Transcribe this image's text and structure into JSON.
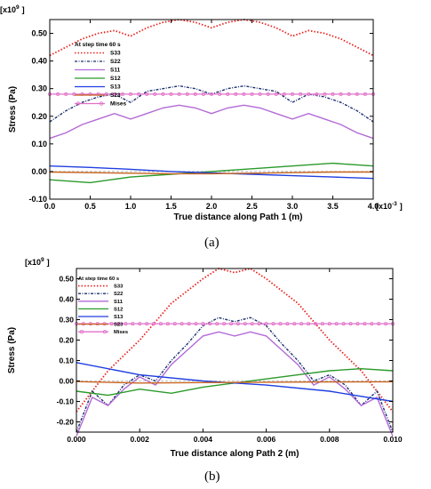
{
  "chart_data": [
    {
      "type": "line",
      "panel_label": "(a)",
      "multiplier_label": "[x10",
      "multiplier_exp": "9",
      "multiplier_close": "]",
      "x_multiplier_label": "[x10",
      "x_multiplier_exp": "-3",
      "x_multiplier_close": "]",
      "xlabel": "True distance along Path 1 (m)",
      "ylabel": "Stress (Pa)",
      "xlim": [
        0,
        4.0
      ],
      "ylim": [
        -0.1,
        0.55
      ],
      "xticks": [
        "0.0",
        "0.5",
        "1.0",
        "1.5",
        "2.0",
        "2.5",
        "3.0",
        "3.5",
        "4.0"
      ],
      "yticks": [
        "-0.10",
        "0.00",
        "0.10",
        "0.20",
        "0.30",
        "0.40",
        "0.50"
      ],
      "legend_title": "At step time 60 s",
      "legend_position": "top-left",
      "series": [
        {
          "name": "S33",
          "color": "#e8231e",
          "style": "dotted",
          "x": [
            0,
            0.2,
            0.4,
            0.6,
            0.8,
            1.0,
            1.2,
            1.4,
            1.6,
            1.8,
            2.0,
            2.2,
            2.4,
            2.6,
            2.8,
            3.0,
            3.2,
            3.4,
            3.6,
            3.8,
            4.0
          ],
          "y": [
            0.42,
            0.45,
            0.48,
            0.5,
            0.51,
            0.49,
            0.52,
            0.54,
            0.55,
            0.54,
            0.52,
            0.54,
            0.55,
            0.54,
            0.52,
            0.49,
            0.51,
            0.5,
            0.48,
            0.45,
            0.42
          ]
        },
        {
          "name": "S22",
          "color": "#1a2f6e",
          "style": "dashdot",
          "x": [
            0,
            0.2,
            0.4,
            0.6,
            0.8,
            1.0,
            1.2,
            1.4,
            1.6,
            1.8,
            2.0,
            2.2,
            2.4,
            2.6,
            2.8,
            3.0,
            3.2,
            3.4,
            3.6,
            3.8,
            4.0
          ],
          "y": [
            0.18,
            0.22,
            0.25,
            0.27,
            0.28,
            0.25,
            0.29,
            0.3,
            0.31,
            0.3,
            0.28,
            0.3,
            0.31,
            0.3,
            0.29,
            0.25,
            0.28,
            0.27,
            0.25,
            0.22,
            0.18
          ]
        },
        {
          "name": "S11",
          "color": "#b36ad6",
          "style": "solid",
          "x": [
            0,
            0.2,
            0.4,
            0.6,
            0.8,
            1.0,
            1.2,
            1.4,
            1.6,
            1.8,
            2.0,
            2.2,
            2.4,
            2.6,
            2.8,
            3.0,
            3.2,
            3.4,
            3.6,
            3.8,
            4.0
          ],
          "y": [
            0.12,
            0.14,
            0.17,
            0.19,
            0.21,
            0.19,
            0.21,
            0.23,
            0.24,
            0.23,
            0.21,
            0.23,
            0.24,
            0.23,
            0.21,
            0.19,
            0.21,
            0.19,
            0.17,
            0.14,
            0.12
          ]
        },
        {
          "name": "S12",
          "color": "#2a9a2a",
          "style": "solid",
          "x": [
            0,
            0.5,
            1.0,
            1.5,
            2.0,
            2.5,
            3.0,
            3.5,
            4.0
          ],
          "y": [
            -0.03,
            -0.04,
            -0.02,
            -0.01,
            0.0,
            0.01,
            0.02,
            0.03,
            0.02
          ]
        },
        {
          "name": "S13",
          "color": "#1f3fe0",
          "style": "solid",
          "x": [
            0,
            0.5,
            1.0,
            1.5,
            2.0,
            2.5,
            3.0,
            3.5,
            4.0
          ],
          "y": [
            0.02,
            0.015,
            0.008,
            0.0,
            -0.005,
            -0.01,
            -0.015,
            -0.02,
            -0.025
          ]
        },
        {
          "name": "S23",
          "color": "#c8641e",
          "style": "solid",
          "x": [
            0,
            0.5,
            1.0,
            1.5,
            2.0,
            2.5,
            3.0,
            3.5,
            4.0
          ],
          "y": [
            -0.002,
            -0.004,
            -0.006,
            -0.008,
            -0.008,
            -0.006,
            -0.004,
            -0.002,
            -0.002
          ]
        },
        {
          "name": "Mises",
          "color": "#e070c8",
          "style": "marker",
          "x": [
            0,
            4.0
          ],
          "y": [
            0.28,
            0.28
          ]
        }
      ]
    },
    {
      "type": "line",
      "panel_label": "(b)",
      "multiplier_label": "[x10",
      "multiplier_exp": "9",
      "multiplier_close": "]",
      "xlabel": "True distance along Path 2 (m)",
      "ylabel": "Stress (Pa)",
      "xlim": [
        0,
        0.01
      ],
      "ylim": [
        -0.25,
        0.55
      ],
      "xticks": [
        "0.000",
        "0.002",
        "0.004",
        "0.006",
        "0.008",
        "0.010"
      ],
      "yticks": [
        "-0.20",
        "-0.10",
        "0.00",
        "0.10",
        "0.20",
        "0.30",
        "0.40",
        "0.50"
      ],
      "legend_title": "At step time 60 s",
      "legend_position": "top-left",
      "series": [
        {
          "name": "S33",
          "color": "#e8231e",
          "style": "dotted",
          "x": [
            0,
            0.001,
            0.002,
            0.003,
            0.004,
            0.0045,
            0.005,
            0.0055,
            0.006,
            0.007,
            0.008,
            0.009,
            0.01
          ],
          "y": [
            -0.15,
            0.05,
            0.2,
            0.38,
            0.5,
            0.55,
            0.53,
            0.55,
            0.5,
            0.38,
            0.2,
            0.05,
            -0.15
          ]
        },
        {
          "name": "S22",
          "color": "#1a2f6e",
          "style": "dashdot",
          "x": [
            0,
            0.0005,
            0.001,
            0.0015,
            0.002,
            0.0025,
            0.003,
            0.0035,
            0.004,
            0.0045,
            0.005,
            0.0055,
            0.006,
            0.0065,
            0.007,
            0.0075,
            0.008,
            0.0085,
            0.009,
            0.0095,
            0.01
          ],
          "y": [
            -0.25,
            -0.05,
            -0.12,
            -0.02,
            0.03,
            0.0,
            0.1,
            0.18,
            0.27,
            0.31,
            0.29,
            0.31,
            0.27,
            0.18,
            0.1,
            0.0,
            0.03,
            -0.02,
            -0.12,
            -0.05,
            -0.25
          ]
        },
        {
          "name": "S11",
          "color": "#b36ad6",
          "style": "solid",
          "x": [
            0,
            0.0005,
            0.001,
            0.0015,
            0.002,
            0.0025,
            0.003,
            0.0035,
            0.004,
            0.0045,
            0.005,
            0.0055,
            0.006,
            0.0065,
            0.007,
            0.0075,
            0.008,
            0.0085,
            0.009,
            0.0095,
            0.01
          ],
          "y": [
            -0.27,
            -0.08,
            -0.12,
            -0.04,
            0.02,
            -0.02,
            0.08,
            0.15,
            0.22,
            0.24,
            0.22,
            0.24,
            0.22,
            0.15,
            0.08,
            -0.02,
            0.02,
            -0.04,
            -0.12,
            -0.08,
            -0.27
          ]
        },
        {
          "name": "S12",
          "color": "#2a9a2a",
          "style": "solid",
          "x": [
            0,
            0.001,
            0.002,
            0.003,
            0.004,
            0.005,
            0.006,
            0.007,
            0.008,
            0.009,
            0.01
          ],
          "y": [
            -0.05,
            -0.07,
            -0.04,
            -0.06,
            -0.03,
            -0.01,
            0.01,
            0.03,
            0.05,
            0.06,
            0.05
          ]
        },
        {
          "name": "S13",
          "color": "#1f3fe0",
          "style": "solid",
          "x": [
            0,
            0.002,
            0.004,
            0.006,
            0.008,
            0.01
          ],
          "y": [
            0.09,
            0.03,
            0.0,
            -0.02,
            -0.05,
            -0.1
          ]
        },
        {
          "name": "S23",
          "color": "#c8641e",
          "style": "solid",
          "x": [
            0,
            0.002,
            0.004,
            0.006,
            0.008,
            0.01
          ],
          "y": [
            -0.003,
            -0.01,
            -0.008,
            -0.006,
            -0.005,
            -0.004
          ]
        },
        {
          "name": "Mises",
          "color": "#e070c8",
          "style": "marker",
          "x": [
            0,
            0.01
          ],
          "y": [
            0.28,
            0.28
          ]
        }
      ]
    }
  ]
}
